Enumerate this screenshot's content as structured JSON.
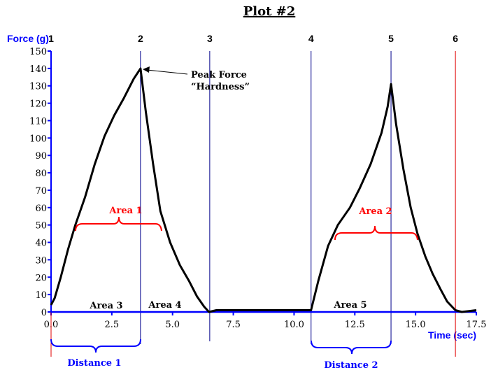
{
  "chart_data": {
    "type": "line",
    "title": "Plot #2",
    "xlabel": "Time (sec)",
    "ylabel": "Force (g)",
    "xlim": [
      0,
      17.5
    ],
    "ylim": [
      0,
      150
    ],
    "x_ticks": [
      "0.0",
      "2.5",
      "5.0",
      "7.5",
      "10.0",
      "12.5",
      "15.0",
      "17.5"
    ],
    "y_ticks": [
      "0",
      "10",
      "20",
      "30",
      "40",
      "50",
      "60",
      "70",
      "80",
      "90",
      "100",
      "110",
      "120",
      "130",
      "140",
      "150"
    ],
    "grid": false,
    "series": [
      {
        "x": [
          0,
          0.15,
          0.4,
          0.7,
          1.0,
          1.4,
          1.8,
          2.2,
          2.6,
          3.0,
          3.4,
          3.68,
          3.9,
          4.2,
          4.5,
          4.9,
          5.3,
          5.67,
          6.0,
          6.3,
          6.5,
          6.8,
          7.5,
          8.5,
          9.5,
          10.4,
          10.7,
          11.0,
          11.4,
          11.8,
          12.3,
          12.7,
          13.15,
          13.6,
          13.85,
          13.99,
          14.2,
          14.5,
          14.8,
          15.08,
          15.4,
          15.7,
          16.03,
          16.3,
          16.64,
          16.9,
          17.5
        ],
        "y": [
          4,
          8,
          20,
          36,
          50,
          66,
          85,
          101,
          113,
          123,
          134,
          140,
          115,
          85,
          58,
          40,
          27,
          18,
          9,
          3,
          0,
          1,
          1,
          1,
          1,
          1,
          1,
          18,
          38,
          50,
          60,
          71,
          85,
          103,
          118,
          131,
          108,
          82,
          60,
          45,
          32,
          22,
          13,
          6,
          1,
          0,
          1
        ]
      }
    ],
    "markers": [
      {
        "label": "1",
        "x": 0.0,
        "color": "#e00000"
      },
      {
        "label": "2",
        "x": 3.68,
        "color": "#00008b"
      },
      {
        "label": "3",
        "x": 6.53,
        "color": "#00008b"
      },
      {
        "label": "4",
        "x": 10.7,
        "color": "#00008b"
      },
      {
        "label": "5",
        "x": 13.99,
        "color": "#00008b"
      },
      {
        "label": "6",
        "x": 16.64,
        "color": "#e00000"
      }
    ],
    "annotations": {
      "peak": [
        "Peak Force",
        "“Hardness”"
      ],
      "area1": "Area 1",
      "area2": "Area 2",
      "area3": "Area 3",
      "area4": "Area 4",
      "area5": "Area 5",
      "distance1": "Distance 1",
      "distance2": "Distance 2"
    },
    "colors": {
      "axis": "#0000ff",
      "curve": "#000000",
      "area_label": "#ff0000",
      "distance_label": "#0000ff"
    }
  }
}
